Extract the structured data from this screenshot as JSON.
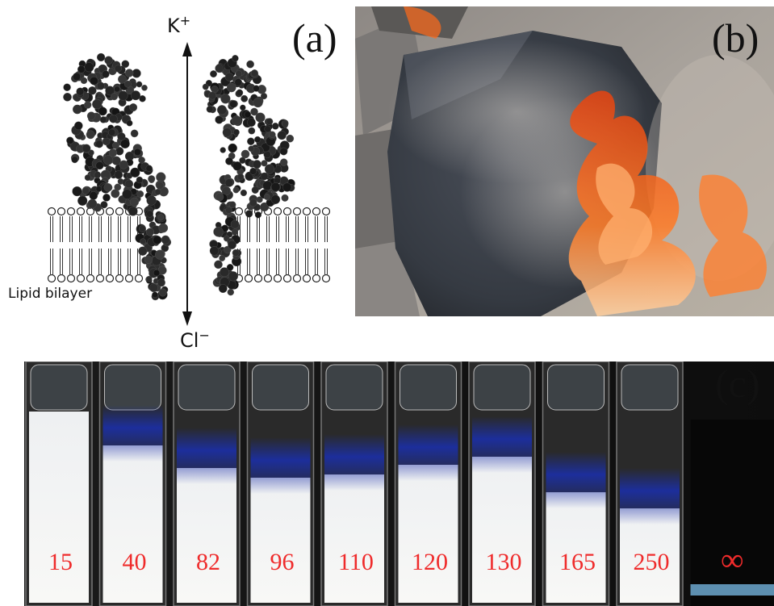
{
  "panels": {
    "a": {
      "label": "(a)",
      "ion_top": "K",
      "ion_top_charge": "+",
      "ion_bottom": "Cl",
      "ion_bottom_charge": "−",
      "membrane_label": "Lipid bilayer"
    },
    "b": {
      "label": "(b)"
    },
    "c": {
      "label": "(c)",
      "cuvette_values": [
        "15",
        "40",
        "82",
        "96",
        "110",
        "120",
        "130",
        "165",
        "250",
        "∞"
      ]
    }
  },
  "colors": {
    "value_text": "#ef2b2b",
    "protein": "#1c1c1c",
    "flame": "#ff6a1a",
    "rock": "#3c4048"
  }
}
